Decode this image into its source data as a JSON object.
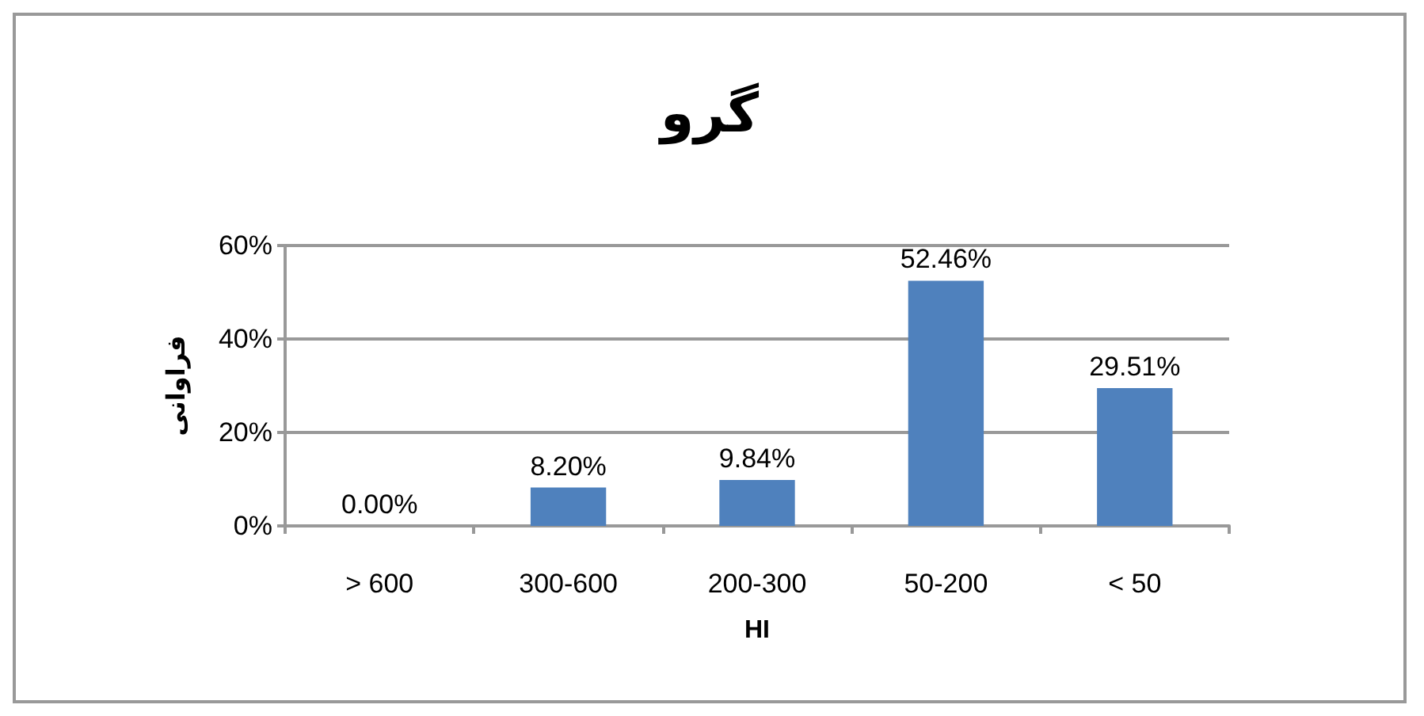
{
  "chart_data": {
    "type": "bar",
    "title": "گرو",
    "xlabel": "HI",
    "ylabel": "فراوانی",
    "categories": [
      "> 600",
      "300-600",
      "200-300",
      "50-200",
      "< 50"
    ],
    "values": [
      0,
      8.2,
      9.84,
      52.46,
      29.51
    ],
    "value_labels": [
      "0.00%",
      "8.20%",
      "9.84%",
      "52.46%",
      "29.51%"
    ],
    "color": "#4f81bd",
    "ylim": [
      0,
      60
    ],
    "yticks": [
      {
        "value": 0,
        "label": "0%"
      },
      {
        "value": 20,
        "label": "20%"
      },
      {
        "value": 40,
        "label": "40%"
      },
      {
        "value": 60,
        "label": "60%"
      }
    ],
    "grid": "y"
  }
}
